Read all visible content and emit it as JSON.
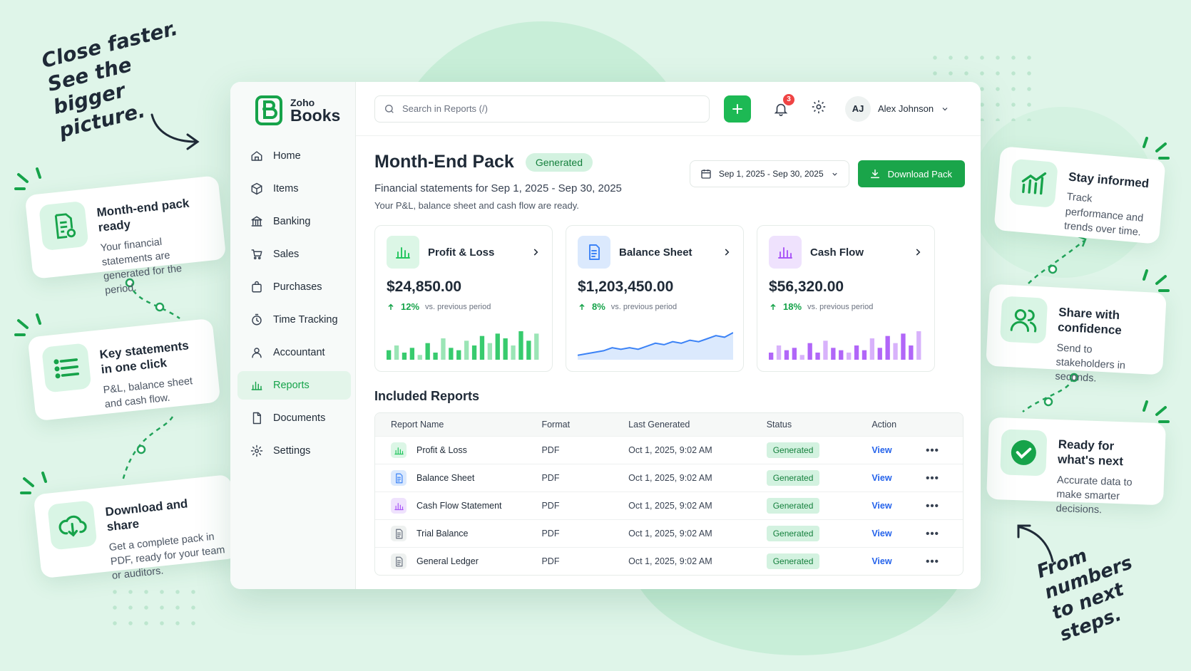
{
  "marketing": {
    "headline_left": [
      "Close faster.",
      "See the bigger",
      "picture."
    ],
    "headline_right": [
      "From numbers",
      "to next steps."
    ],
    "features_left": [
      {
        "title": "Month-end pack ready",
        "text": "Your financial statements are generated for the period.",
        "icon": "document-check-icon"
      },
      {
        "title": "Key statements in one click",
        "text": "P&L, balance sheet and cash flow.",
        "icon": "list-icon"
      },
      {
        "title": "Download and share",
        "text": "Get a complete pack in PDF, ready for your team or auditors.",
        "icon": "cloud-download-icon"
      }
    ],
    "features_right": [
      {
        "title": "Stay informed",
        "text": "Track performance and trends over time.",
        "icon": "bar-chart-trend-icon"
      },
      {
        "title": "Share with confidence",
        "text": "Send to stakeholders in seconds.",
        "icon": "users-icon"
      },
      {
        "title": "Ready for what's next",
        "text": "Accurate data to make smarter decisions.",
        "icon": "check-circle-icon"
      }
    ]
  },
  "brand": {
    "small": "Zoho",
    "big": "Books",
    "accent": "#1aa54a"
  },
  "sidebar": {
    "items": [
      {
        "label": "Home",
        "icon": "home-icon"
      },
      {
        "label": "Items",
        "icon": "box-icon"
      },
      {
        "label": "Banking",
        "icon": "bank-icon"
      },
      {
        "label": "Sales",
        "icon": "cart-icon"
      },
      {
        "label": "Purchases",
        "icon": "bag-icon"
      },
      {
        "label": "Time Tracking",
        "icon": "stopwatch-icon"
      },
      {
        "label": "Accountant",
        "icon": "person-icon"
      },
      {
        "label": "Reports",
        "icon": "bar-chart-icon",
        "active": true
      },
      {
        "label": "Documents",
        "icon": "file-icon"
      },
      {
        "label": "Settings",
        "icon": "gear-icon"
      }
    ]
  },
  "topbar": {
    "search_placeholder": "Search in Reports (/)",
    "notifications": "3",
    "user_initials": "AJ",
    "user_name": "Alex Johnson"
  },
  "page": {
    "title": "Month-End Pack",
    "status": "Generated",
    "subtitle": "Financial statements for Sep 1, 2025 - Sep 30, 2025",
    "note": "Your P&L, balance sheet and cash flow are ready.",
    "date_range": "Sep 1, 2025 - Sep 30, 2025",
    "download_label": "Download Pack"
  },
  "summary_cards": [
    {
      "name": "Profit & Loss",
      "amount": "$24,850.00",
      "change": "12%",
      "vs": "vs. previous period",
      "color": "#22c55e",
      "chart": {
        "type": "bar",
        "values": [
          4,
          6,
          3,
          5,
          2,
          7,
          3,
          9,
          5,
          4,
          8,
          6,
          10,
          7,
          11,
          9,
          6,
          12,
          8,
          11
        ]
      }
    },
    {
      "name": "Balance Sheet",
      "amount": "$1,203,450.00",
      "change": "8%",
      "vs": "vs. previous period",
      "color": "#3b82f6",
      "chart": {
        "type": "area",
        "values": [
          2,
          3,
          4,
          5,
          7,
          6,
          7,
          6,
          8,
          10,
          9,
          11,
          10,
          12,
          11,
          13,
          15,
          14,
          17
        ]
      }
    },
    {
      "name": "Cash Flow",
      "amount": "$56,320.00",
      "change": "18%",
      "vs": "vs. previous period",
      "color": "#a855f7",
      "chart": {
        "type": "bar",
        "values": [
          3,
          6,
          4,
          5,
          2,
          7,
          3,
          8,
          5,
          4,
          3,
          6,
          4,
          9,
          5,
          10,
          7,
          11,
          6,
          12
        ]
      }
    }
  ],
  "included_reports": {
    "heading": "Included Reports",
    "columns": [
      "Report Name",
      "Format",
      "Last Generated",
      "Status",
      "Action"
    ],
    "rows": [
      {
        "name": "Profit & Loss",
        "format": "PDF",
        "generated": "Oct 1, 2025, 9:02 AM",
        "status": "Generated",
        "action": "View",
        "icon": "bar-chart-icon",
        "color": "#22c55e"
      },
      {
        "name": "Balance Sheet",
        "format": "PDF",
        "generated": "Oct 1, 2025, 9:02 AM",
        "status": "Generated",
        "action": "View",
        "icon": "document-icon",
        "color": "#3b82f6"
      },
      {
        "name": "Cash Flow Statement",
        "format": "PDF",
        "generated": "Oct 1, 2025, 9:02 AM",
        "status": "Generated",
        "action": "View",
        "icon": "bar-chart-icon",
        "color": "#a855f7"
      },
      {
        "name": "Trial Balance",
        "format": "PDF",
        "generated": "Oct 1, 2025, 9:02 AM",
        "status": "Generated",
        "action": "View",
        "icon": "document-icon",
        "color": "#6b7280"
      },
      {
        "name": "General Ledger",
        "format": "PDF",
        "generated": "Oct 1, 2025, 9:02 AM",
        "status": "Generated",
        "action": "View",
        "icon": "document-icon",
        "color": "#6b7280"
      }
    ]
  }
}
